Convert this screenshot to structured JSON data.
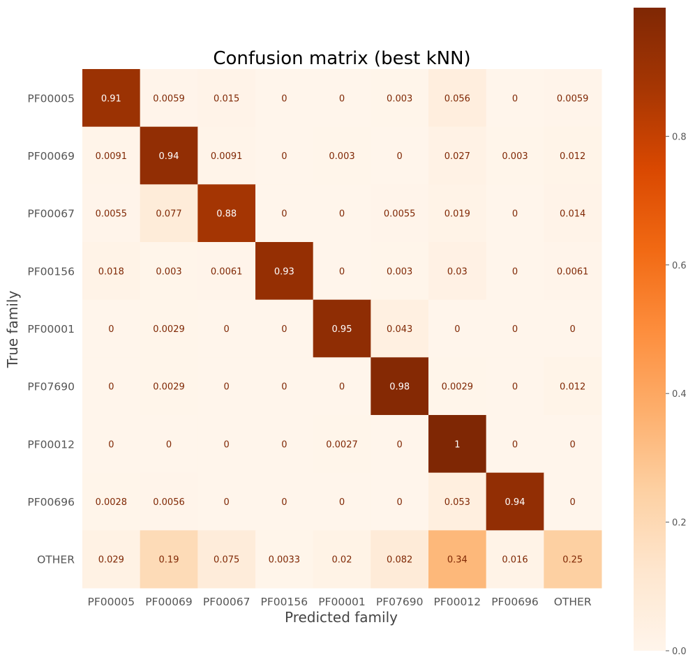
{
  "chart_data": {
    "type": "heatmap",
    "title": "Confusion matrix (best kNN)",
    "xlabel": "Predicted family",
    "ylabel": "True family",
    "x_categories": [
      "PF00005",
      "PF00069",
      "PF00067",
      "PF00156",
      "PF00001",
      "PF07690",
      "PF00012",
      "PF00696",
      "OTHER"
    ],
    "y_categories": [
      "PF00005",
      "PF00069",
      "PF00067",
      "PF00156",
      "PF00001",
      "PF07690",
      "PF00012",
      "PF00696",
      "OTHER"
    ],
    "values": [
      [
        0.91,
        0.0059,
        0.015,
        0,
        0,
        0.003,
        0.056,
        0,
        0.0059
      ],
      [
        0.0091,
        0.94,
        0.0091,
        0,
        0.003,
        0,
        0.027,
        0.003,
        0.012
      ],
      [
        0.0055,
        0.077,
        0.88,
        0,
        0,
        0.0055,
        0.019,
        0,
        0.014
      ],
      [
        0.018,
        0.003,
        0.0061,
        0.93,
        0,
        0.003,
        0.03,
        0,
        0.0061
      ],
      [
        0,
        0.0029,
        0,
        0,
        0.95,
        0.043,
        0,
        0,
        0
      ],
      [
        0,
        0.0029,
        0,
        0,
        0,
        0.98,
        0.0029,
        0,
        0.012
      ],
      [
        0,
        0,
        0,
        0,
        0.0027,
        0,
        1,
        0,
        0
      ],
      [
        0.0028,
        0.0056,
        0,
        0,
        0,
        0,
        0.053,
        0.94,
        0
      ],
      [
        0.029,
        0.19,
        0.075,
        0.0033,
        0.02,
        0.082,
        0.34,
        0.016,
        0.25
      ]
    ],
    "value_labels": [
      [
        "0.91",
        "0.0059",
        "0.015",
        "0",
        "0",
        "0.003",
        "0.056",
        "0",
        "0.0059"
      ],
      [
        "0.0091",
        "0.94",
        "0.0091",
        "0",
        "0.003",
        "0",
        "0.027",
        "0.003",
        "0.012"
      ],
      [
        "0.0055",
        "0.077",
        "0.88",
        "0",
        "0",
        "0.0055",
        "0.019",
        "0",
        "0.014"
      ],
      [
        "0.018",
        "0.003",
        "0.0061",
        "0.93",
        "0",
        "0.003",
        "0.03",
        "0",
        "0.0061"
      ],
      [
        "0",
        "0.0029",
        "0",
        "0",
        "0.95",
        "0.043",
        "0",
        "0",
        "0"
      ],
      [
        "0",
        "0.0029",
        "0",
        "0",
        "0",
        "0.98",
        "0.0029",
        "0",
        "0.012"
      ],
      [
        "0",
        "0",
        "0",
        "0",
        "0.0027",
        "0",
        "1",
        "0",
        "0"
      ],
      [
        "0.0028",
        "0.0056",
        "0",
        "0",
        "0",
        "0",
        "0.053",
        "0.94",
        "0"
      ],
      [
        "0.029",
        "0.19",
        "0.075",
        "0.0033",
        "0.02",
        "0.082",
        "0.34",
        "0.016",
        "0.25"
      ]
    ],
    "colormap": "Oranges",
    "colorbar": {
      "range": [
        0,
        1
      ],
      "ticks": [
        0.0,
        0.2,
        0.4,
        0.6,
        0.8
      ],
      "tick_labels": [
        "0.0",
        "0.2",
        "0.4",
        "0.6",
        "0.8"
      ]
    },
    "grid": false,
    "dark_text_color": "#7f2704",
    "light_text_color": "#ffffff"
  }
}
